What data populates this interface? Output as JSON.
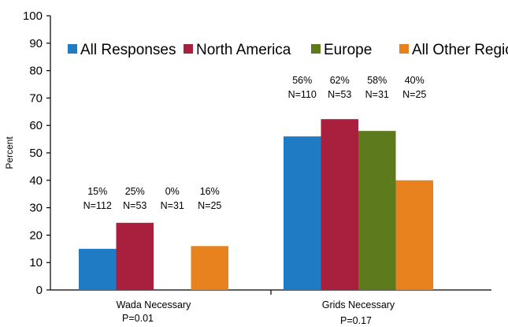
{
  "chart_data": {
    "type": "bar",
    "ylabel": "Percent",
    "ylim": [
      0,
      100
    ],
    "yticks": [
      0,
      10,
      20,
      30,
      40,
      50,
      60,
      70,
      80,
      90,
      100
    ],
    "grid": false,
    "legend_position": "top",
    "categories": [
      {
        "name": "Wada Necessary",
        "sub": "P=0.01"
      },
      {
        "name": "Grids Necessary",
        "sub": "P=0.17"
      }
    ],
    "series": [
      {
        "name": "All Responses",
        "color": "#1f7bc4",
        "values": [
          15,
          56
        ],
        "labels": [
          "15%",
          "56%"
        ],
        "n": [
          "N=112",
          "N=110"
        ]
      },
      {
        "name": "North America",
        "color": "#a8203e",
        "values": [
          24.5,
          62.3
        ],
        "labels": [
          "25%",
          "62%"
        ],
        "n": [
          "N=53",
          "N=53"
        ]
      },
      {
        "name": "Europe",
        "color": "#5d7a1d",
        "values": [
          0,
          58
        ],
        "labels": [
          "0%",
          "58%"
        ],
        "n": [
          "N=31",
          "N=31"
        ]
      },
      {
        "name": "All Other Regions",
        "color": "#e8821e",
        "values": [
          16,
          40
        ],
        "labels": [
          "16%",
          "40%"
        ],
        "n": [
          "N=25",
          "N=25"
        ]
      }
    ]
  }
}
